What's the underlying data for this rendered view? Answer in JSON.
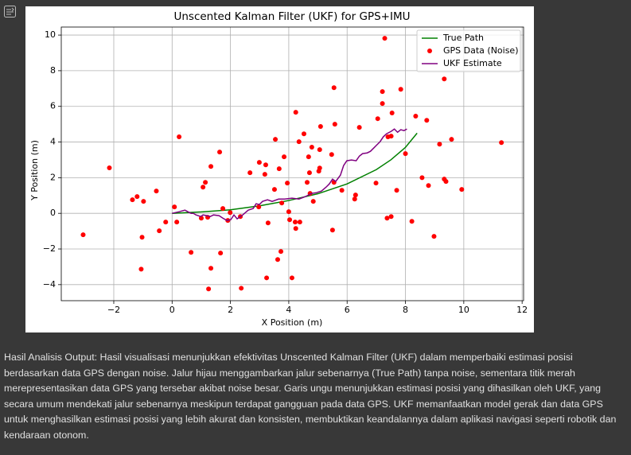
{
  "chart_data": {
    "type": "line",
    "title": "Unscented Kalman Filter (UKF) for GPS+IMU",
    "xlabel": "X Position (m)",
    "ylabel": "Y Position (m)",
    "xlim": [
      -3.8,
      12.05
    ],
    "ylim": [
      -4.9,
      10.45
    ],
    "xticks": [
      {
        "value": -2,
        "label": "−2"
      },
      0,
      2,
      4,
      6,
      8,
      10,
      12
    ],
    "yticks": [
      {
        "value": -4,
        "label": "−4"
      },
      {
        "value": -2,
        "label": "−2"
      },
      0,
      2,
      4,
      6,
      8,
      10
    ],
    "grid": true,
    "legend": "upper right",
    "series": [
      {
        "name": "True Path",
        "type": "line",
        "color": "#008000",
        "x": [
          0,
          1,
          2,
          3,
          4,
          5,
          6,
          7,
          7.5,
          8,
          8.4
        ],
        "y": [
          0,
          0.08,
          0.2,
          0.42,
          0.72,
          1.1,
          1.65,
          2.45,
          3.0,
          3.7,
          4.5
        ]
      },
      {
        "name": "GPS Data (Noise)",
        "type": "scatter",
        "color": "#ff0000",
        "x": [
          -3.05,
          -2.15,
          -1.36,
          -1.2,
          -0.98,
          -1.03,
          -1.06,
          -0.54,
          -0.44,
          -0.22,
          0.08,
          0.16,
          0.24,
          0.65,
          1.0,
          1.06,
          1.14,
          1.22,
          1.25,
          1.33,
          1.33,
          1.63,
          1.66,
          1.74,
          1.91,
          1.99,
          2.37,
          2.34,
          2.67,
          2.99,
          2.97,
          3.21,
          3.18,
          3.24,
          3.29,
          3.54,
          3.51,
          3.62,
          3.67,
          3.73,
          3.76,
          3.84,
          3.95,
          4.0,
          4.03,
          4.11,
          4.22,
          4.24,
          4.24,
          4.35,
          4.38,
          4.52,
          4.63,
          4.68,
          4.71,
          4.73,
          4.79,
          4.84,
          5.03,
          5.06,
          5.06,
          5.09,
          5.47,
          5.5,
          5.55,
          5.58,
          5.55,
          5.82,
          6.26,
          6.29,
          6.42,
          6.99,
          7.05,
          7.21,
          7.21,
          7.29,
          7.37,
          7.4,
          7.51,
          7.54,
          7.51,
          7.7,
          7.84,
          8.0,
          8.22,
          8.35,
          8.57,
          8.73,
          8.79,
          8.98,
          9.17,
          9.33,
          9.33,
          9.39,
          9.58,
          9.93,
          11.29
        ],
        "y": [
          -1.2,
          2.55,
          0.76,
          0.94,
          0.67,
          -1.34,
          -3.13,
          1.25,
          -0.98,
          -0.49,
          0.36,
          -0.49,
          4.29,
          -2.19,
          -0.27,
          1.47,
          1.74,
          -0.22,
          -4.24,
          2.63,
          -3.08,
          3.44,
          -2.23,
          0.27,
          -0.4,
          0.04,
          -4.2,
          -0.18,
          2.28,
          2.86,
          0.36,
          2.72,
          2.19,
          -3.62,
          -0.54,
          4.15,
          1.34,
          -2.59,
          2.5,
          -2.14,
          0.58,
          3.17,
          1.7,
          0.09,
          -0.36,
          -3.62,
          -0.49,
          5.67,
          -0.85,
          4.02,
          -0.49,
          4.46,
          1.74,
          3.17,
          2.28,
          1.12,
          3.71,
          0.67,
          2.37,
          3.57,
          2.54,
          4.87,
          3.3,
          -0.94,
          7.05,
          5.0,
          1.74,
          1.29,
          0.8,
          1.03,
          4.82,
          1.7,
          5.31,
          6.83,
          6.16,
          9.82,
          -0.27,
          4.29,
          -0.18,
          5.63,
          4.33,
          1.29,
          6.96,
          3.35,
          -0.45,
          5.45,
          2.0,
          5.22,
          1.56,
          -1.29,
          3.88,
          7.54,
          1.92,
          1.79,
          4.15,
          1.34,
          3.97
        ]
      },
      {
        "name": "UKF Estimate",
        "type": "line",
        "color": "#800080",
        "x": [
          0,
          0.24,
          0.44,
          0.54,
          0.65,
          0.73,
          0.82,
          0.98,
          1.06,
          1.2,
          1.31,
          1.42,
          1.61,
          1.74,
          1.88,
          2.01,
          2.12,
          2.23,
          2.42,
          2.61,
          2.78,
          2.88,
          2.99,
          3.1,
          3.27,
          3.43,
          3.65,
          3.86,
          4.11,
          4.35,
          4.57,
          4.79,
          4.95,
          5.12,
          5.28,
          5.39,
          5.5,
          5.61,
          5.77,
          5.88,
          5.99,
          6.15,
          6.31,
          6.42,
          6.53,
          6.69,
          6.8,
          6.91,
          7.02,
          7.13,
          7.24,
          7.35,
          7.51,
          7.62,
          7.73,
          7.84,
          7.95,
          8.05
        ],
        "y": [
          0,
          0.09,
          0.18,
          0.09,
          0,
          0,
          -0.09,
          -0.18,
          -0.09,
          -0.13,
          -0.18,
          -0.09,
          -0.13,
          -0.27,
          -0.4,
          -0.36,
          -0.09,
          -0.31,
          -0.09,
          0.18,
          0.27,
          0.54,
          0.49,
          0.67,
          0.76,
          0.67,
          0.8,
          0.8,
          0.85,
          0.8,
          0.94,
          1.12,
          1.16,
          1.25,
          1.47,
          1.65,
          1.92,
          1.79,
          2.14,
          2.68,
          2.95,
          2.99,
          2.95,
          3.21,
          3.35,
          3.39,
          3.48,
          3.66,
          3.84,
          4.02,
          4.29,
          4.46,
          4.6,
          4.73,
          4.55,
          4.69,
          4.64,
          4.73
        ]
      }
    ]
  },
  "output_text": "Hasil Analisis Output: Hasil visualisasi menunjukkan efektivitas Unscented Kalman Filter (UKF) dalam memperbaiki estimasi posisi berdasarkan data GPS dengan noise. Jalur hijau menggambarkan jalur sebenarnya (True Path) tanpa noise, sementara titik merah merepresentasikan data GPS yang tersebar akibat noise besar. Garis ungu menunjukkan estimasi posisi yang dihasilkan oleh UKF, yang secara umum mendekati jalur sebenarnya meskipun terdapat gangguan pada data GPS. UKF memanfaatkan model gerak dan data GPS untuk menghasilkan estimasi posisi yang lebih akurat dan konsisten, membuktikan keandalannya dalam aplikasi navigasi seperti robotik dan kendaraan otonom."
}
